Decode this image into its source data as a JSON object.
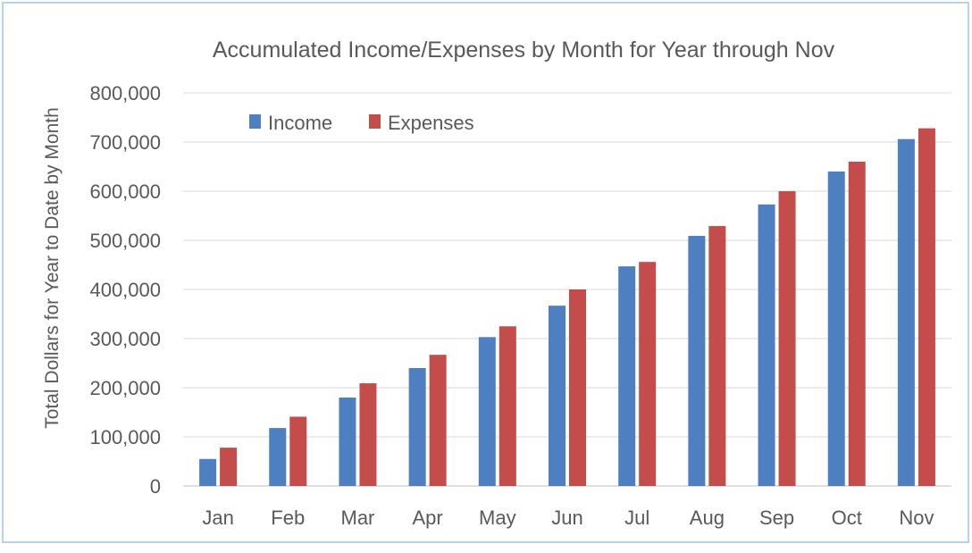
{
  "colors": {
    "income": "#4e7fc1",
    "expenses": "#c44d4b",
    "gridline": "#d9d9d9",
    "axis": "#bfbfbf",
    "text": "#595959",
    "frame": "#9dc3e6"
  },
  "chart_data": {
    "type": "bar",
    "title": "Accumulated Income/Expenses by Month for Year through Nov",
    "xlabel": "",
    "ylabel": "Total Dollars for Year to Date by Month",
    "categories": [
      "Jan",
      "Feb",
      "Mar",
      "Apr",
      "May",
      "Jun",
      "Jul",
      "Aug",
      "Sep",
      "Oct",
      "Nov"
    ],
    "series": [
      {
        "name": "Income",
        "values": [
          55000,
          118000,
          180000,
          240000,
          303000,
          367000,
          447000,
          509000,
          573000,
          640000,
          706000
        ]
      },
      {
        "name": "Expenses",
        "values": [
          78000,
          141000,
          209000,
          267000,
          325000,
          400000,
          456000,
          529000,
          600000,
          660000,
          728000
        ]
      }
    ],
    "ylim": [
      0,
      800000
    ],
    "yticks": [
      0,
      100000,
      200000,
      300000,
      400000,
      500000,
      600000,
      700000,
      800000
    ],
    "ytick_labels": [
      "0",
      "100,000",
      "200,000",
      "300,000",
      "400,000",
      "500,000",
      "600,000",
      "700,000",
      "800,000"
    ],
    "grid": true,
    "legend_position": "top-left"
  }
}
